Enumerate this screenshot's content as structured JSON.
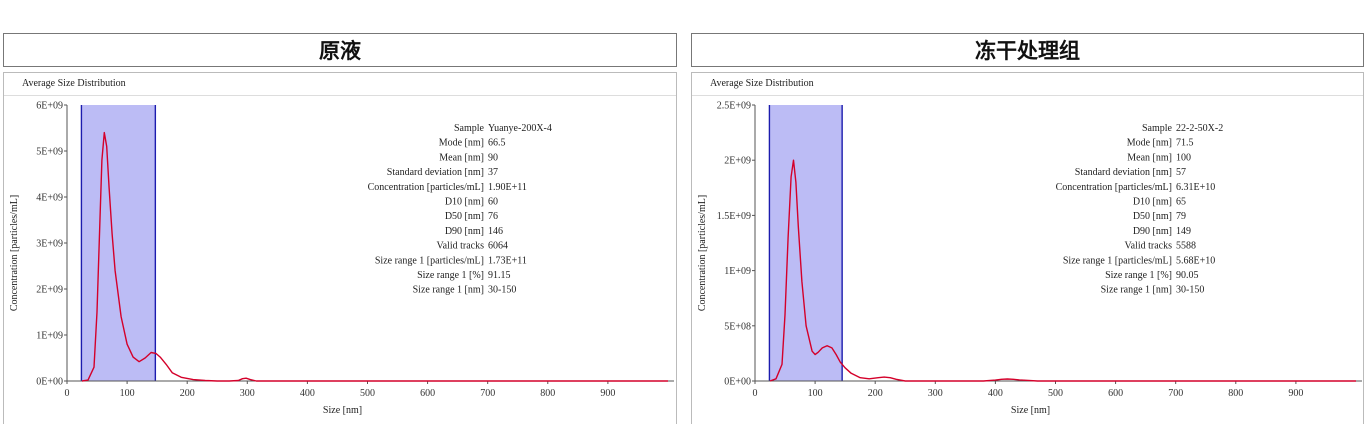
{
  "panels": [
    {
      "title": "原液",
      "header": "Average Size Distribution",
      "chart_data": {
        "type": "line",
        "title": "Average Size Distribution",
        "xlabel": "Size  [nm]",
        "ylabel": "Concentration  [particles/mL]",
        "xlim": [
          0,
          1010
        ],
        "ylim": [
          0,
          6000000000
        ],
        "xticks": [
          0,
          100,
          200,
          300,
          400,
          500,
          600,
          700,
          800,
          900
        ],
        "xtick_labels": [
          "0",
          "100",
          "200",
          "300",
          "400",
          "500",
          "600",
          "700",
          "800",
          "900"
        ],
        "yticks": [
          0,
          1000000000,
          2000000000,
          3000000000,
          4000000000,
          5000000000,
          6000000000
        ],
        "ytick_labels": [
          "0E+00",
          "1E+09",
          "2E+09",
          "3E+09",
          "4E+09",
          "5E+09",
          "6E+09"
        ],
        "range": [
          24,
          147
        ],
        "x": [
          25,
          35,
          45,
          50,
          55,
          58,
          62,
          66,
          70,
          75,
          80,
          90,
          100,
          110,
          120,
          130,
          140,
          148,
          155,
          165,
          175,
          190,
          210,
          230,
          250,
          270,
          285,
          292,
          298,
          305,
          315,
          400,
          600,
          800,
          1000
        ],
        "y": [
          0,
          20000000.0,
          300000000.0,
          1500000000.0,
          3600000000.0,
          4800000000.0,
          5400000000.0,
          5100000000.0,
          4200000000.0,
          3200000000.0,
          2400000000.0,
          1400000000.0,
          800000000.0,
          520000000.0,
          420000000.0,
          500000000.0,
          620000000.0,
          600000000.0,
          520000000.0,
          360000000.0,
          180000000.0,
          80000000.0,
          30000000.0,
          10000000.0,
          0,
          0,
          10000000.0,
          50000000.0,
          60000000.0,
          30000000.0,
          0,
          0,
          0,
          0,
          0
        ]
      },
      "stats": [
        [
          "Sample",
          "Yuanye-200X-4"
        ],
        [
          "Mode  [nm]",
          "66.5"
        ],
        [
          "Mean  [nm]",
          "90"
        ],
        [
          "Standard deviation  [nm]",
          "37"
        ],
        [
          "Concentration  [particles/mL]",
          "1.90E+11"
        ],
        [
          "D10  [nm]",
          "60"
        ],
        [
          "D50  [nm]",
          "76"
        ],
        [
          "D90  [nm]",
          "146"
        ],
        [
          "Valid tracks",
          "6064"
        ],
        [
          "Size range 1  [particles/mL]",
          "1.73E+11"
        ],
        [
          "Size range 1  [%]",
          "91.15"
        ],
        [
          "Size range 1  [nm]",
          "30-150"
        ]
      ]
    },
    {
      "title": "冻干处理组",
      "header": "Average Size Distribution",
      "chart_data": {
        "type": "line",
        "title": "Average Size Distribution",
        "xlabel": "Size  [nm]",
        "ylabel": "Concentration  [particles/mL]",
        "xlim": [
          0,
          1010
        ],
        "ylim": [
          0,
          2500000000
        ],
        "xticks": [
          0,
          100,
          200,
          300,
          400,
          500,
          600,
          700,
          800,
          900
        ],
        "xtick_labels": [
          "0",
          "100",
          "200",
          "300",
          "400",
          "500",
          "600",
          "700",
          "800",
          "900"
        ],
        "yticks": [
          0,
          500000000,
          1000000000,
          1500000000,
          2000000000,
          2500000000
        ],
        "ytick_labels": [
          "0E+00",
          "5E+08",
          "1E+09",
          "1.5E+09",
          "2E+09",
          "2.5E+09"
        ],
        "range": [
          24,
          145
        ],
        "x": [
          25,
          35,
          45,
          50,
          55,
          60,
          64,
          68,
          72,
          78,
          85,
          95,
          100,
          105,
          112,
          120,
          128,
          135,
          142,
          150,
          160,
          175,
          190,
          205,
          215,
          225,
          235,
          250,
          380,
          400,
          410,
          420,
          430,
          440,
          455,
          470,
          600,
          800,
          1000
        ],
        "y": [
          0,
          20000000.0,
          150000000.0,
          600000000.0,
          1300000000.0,
          1850000000.0,
          2000000000.0,
          1800000000.0,
          1400000000.0,
          900000000.0,
          500000000.0,
          270000000.0,
          240000000.0,
          260000000.0,
          300000000.0,
          320000000.0,
          300000000.0,
          240000000.0,
          170000000.0,
          120000000.0,
          70000000.0,
          30000000.0,
          20000000.0,
          30000000.0,
          35000000.0,
          30000000.0,
          15000000.0,
          0,
          0,
          8000000.0,
          15000000.0,
          18000000.0,
          15000000.0,
          10000000.0,
          5000000.0,
          0,
          0,
          0,
          0
        ]
      },
      "stats": [
        [
          "Sample",
          "22-2-50X-2"
        ],
        [
          "Mode  [nm]",
          "71.5"
        ],
        [
          "Mean  [nm]",
          "100"
        ],
        [
          "Standard deviation  [nm]",
          "57"
        ],
        [
          "Concentration  [particles/mL]",
          "6.31E+10"
        ],
        [
          "D10  [nm]",
          "65"
        ],
        [
          "D50  [nm]",
          "79"
        ],
        [
          "D90  [nm]",
          "149"
        ],
        [
          "Valid tracks",
          "5588"
        ],
        [
          "Size range 1  [particles/mL]",
          "5.68E+10"
        ],
        [
          "Size range 1  [%]",
          "90.05"
        ],
        [
          "Size range 1  [nm]",
          "30-150"
        ]
      ]
    }
  ],
  "colors": {
    "curve": "#d4002a",
    "range_fill": "#bcbcf5",
    "range_line": "#1c1cae",
    "axis": "#555555"
  }
}
